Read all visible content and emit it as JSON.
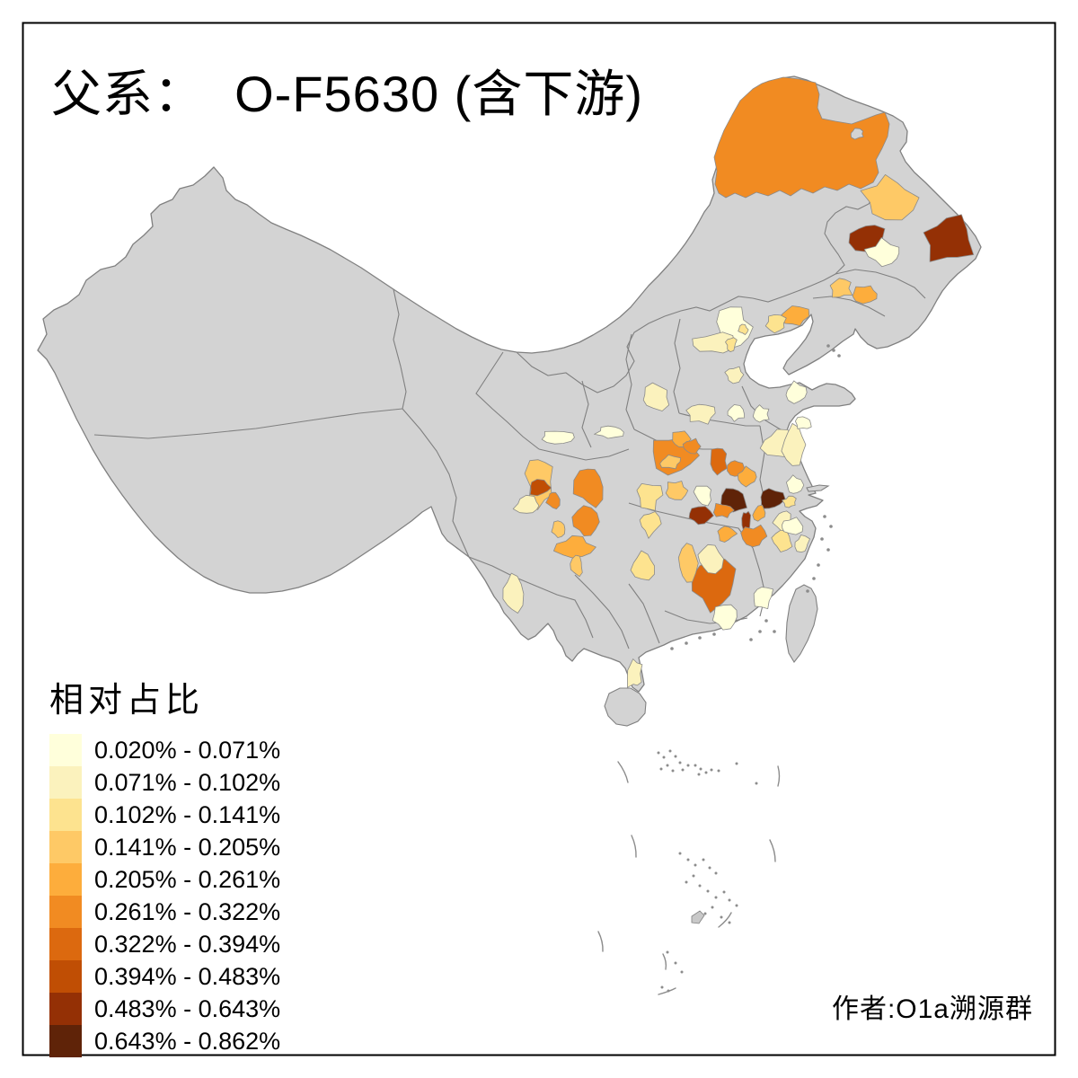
{
  "title": "父系：  O-F5630 (含下游)",
  "legend": {
    "title": "相对占比",
    "bins": [
      {
        "label": "0.020% - 0.071%",
        "color": "#FFFFDB"
      },
      {
        "label": "0.071% - 0.102%",
        "color": "#FBF2BD"
      },
      {
        "label": "0.102% - 0.141%",
        "color": "#FDE38F"
      },
      {
        "label": "0.141% - 0.205%",
        "color": "#FEC966"
      },
      {
        "label": "0.205% - 0.261%",
        "color": "#FDAD3C"
      },
      {
        "label": "0.261% - 0.322%",
        "color": "#F18B22"
      },
      {
        "label": "0.322% - 0.394%",
        "color": "#DC690F"
      },
      {
        "label": "0.394% - 0.483%",
        "color": "#C04E04"
      },
      {
        "label": "0.483% - 0.643%",
        "color": "#943005"
      },
      {
        "label": "0.643% - 0.862%",
        "color": "#5F2308"
      }
    ]
  },
  "attribution": "作者:O1a溯源群",
  "map": {
    "base_color": "#D3D3D3",
    "border_color": "#808080",
    "patch_border_color": "#8A8A8A",
    "sea_color": "#FFFFFF",
    "frame_color": "#000000",
    "islet_color": "#8C8C8C"
  },
  "chart_data": {
    "type": "choropleth-map",
    "region": "China (prefecture level)",
    "title": "父系：  O-F5630 (含下游)",
    "legend_title": "相对占比",
    "classes": [
      "0.020% - 0.071%",
      "0.071% - 0.102%",
      "0.102% - 0.141%",
      "0.141% - 0.205%",
      "0.205% - 0.261%",
      "0.261% - 0.322%",
      "0.322% - 0.394%",
      "0.394% - 0.483%",
      "0.483% - 0.643%",
      "0.643% - 0.862%"
    ],
    "palette": [
      "#FFFFDB",
      "#FBF2BD",
      "#FDE38F",
      "#FEC966",
      "#FDAD3C",
      "#F18B22",
      "#DC690F",
      "#C04E04",
      "#943005",
      "#5F2308"
    ],
    "no_data_color": "#D3D3D3",
    "legend_position": "bottom-left",
    "annotation": "作者:O1a溯源群"
  }
}
